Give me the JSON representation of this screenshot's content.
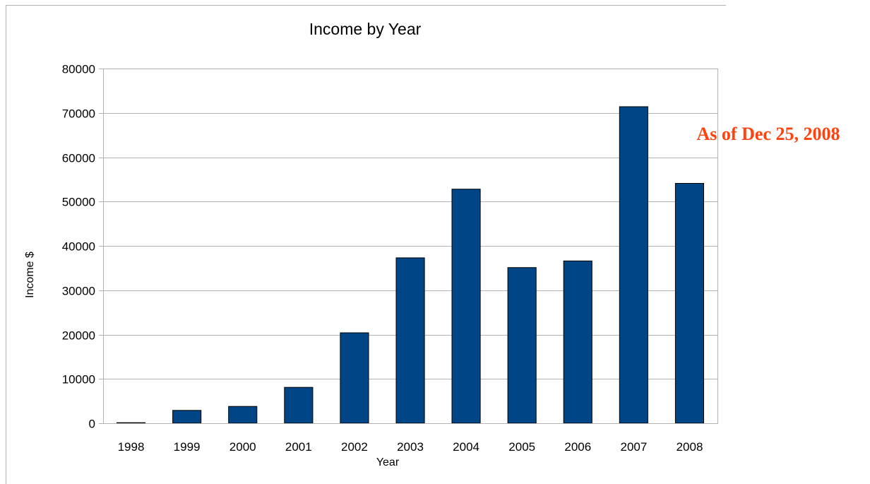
{
  "chart_data": {
    "type": "bar",
    "title": "Income by Year",
    "xlabel": "Year",
    "ylabel": "Income $",
    "categories": [
      "1998",
      "1999",
      "2000",
      "2001",
      "2002",
      "2003",
      "2004",
      "2005",
      "2006",
      "2007",
      "2008"
    ],
    "values": [
      100,
      2900,
      3800,
      8100,
      20400,
      37300,
      52800,
      35100,
      36600,
      71400,
      54100
    ],
    "ylim": [
      0,
      80000
    ],
    "yticks": [
      0,
      10000,
      20000,
      30000,
      40000,
      50000,
      60000,
      70000,
      80000
    ],
    "grid": "horizontal",
    "legend": "none",
    "bar_color": "#004586",
    "annotation": {
      "text": "As of Dec 25, 2008",
      "color": "#ff420e"
    }
  }
}
